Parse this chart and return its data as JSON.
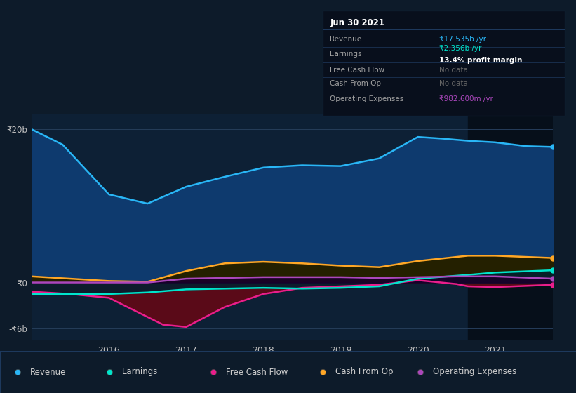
{
  "bg_color": "#0d1b2a",
  "plot_bg_color": "#0d2035",
  "grid_color": "#253d5a",
  "x_min": 2015.0,
  "x_max": 2021.75,
  "y_min": -7.5,
  "y_max": 22,
  "highlight_x_start": 2020.65,
  "highlight_x_end": 2021.75,
  "highlight_color": "#060f1a",
  "zero_line_color": "#c0c0c0",
  "series": {
    "revenue": {
      "color": "#29b6f6",
      "fill_color": "#0e3a6e",
      "label": "Revenue",
      "x": [
        2015.0,
        2015.4,
        2016.0,
        2016.5,
        2017.0,
        2017.5,
        2018.0,
        2018.5,
        2019.0,
        2019.5,
        2020.0,
        2020.3,
        2020.65,
        2021.0,
        2021.4,
        2021.75
      ],
      "y": [
        20.0,
        18.0,
        11.5,
        10.3,
        12.5,
        13.8,
        15.0,
        15.3,
        15.2,
        16.2,
        19.0,
        18.8,
        18.5,
        18.3,
        17.8,
        17.7
      ]
    },
    "earnings": {
      "color": "#00e5cc",
      "fill_color": "#003344",
      "label": "Earnings",
      "x": [
        2015.0,
        2015.5,
        2016.0,
        2016.5,
        2017.0,
        2017.5,
        2018.0,
        2018.5,
        2019.0,
        2019.5,
        2020.0,
        2020.65,
        2021.0,
        2021.5,
        2021.75
      ],
      "y": [
        -1.5,
        -1.5,
        -1.5,
        -1.3,
        -0.9,
        -0.8,
        -0.7,
        -0.8,
        -0.7,
        -0.5,
        0.5,
        1.0,
        1.3,
        1.5,
        1.6
      ]
    },
    "free_cash_flow": {
      "color": "#e91e8c",
      "fill_color": "#6b0a1a",
      "label": "Free Cash Flow",
      "x": [
        2015.0,
        2015.5,
        2016.0,
        2016.4,
        2016.7,
        2017.0,
        2017.5,
        2018.0,
        2018.5,
        2019.0,
        2019.5,
        2020.0,
        2020.5,
        2020.65,
        2021.0,
        2021.5,
        2021.75
      ],
      "y": [
        -1.2,
        -1.5,
        -2.0,
        -4.0,
        -5.5,
        -5.8,
        -3.2,
        -1.5,
        -0.7,
        -0.5,
        -0.3,
        0.3,
        -0.2,
        -0.5,
        -0.6,
        -0.4,
        -0.3
      ]
    },
    "cash_from_op": {
      "color": "#ffa726",
      "fill_color": "#2a1e00",
      "label": "Cash From Op",
      "x": [
        2015.0,
        2015.5,
        2016.0,
        2016.5,
        2017.0,
        2017.5,
        2018.0,
        2018.5,
        2019.0,
        2019.5,
        2020.0,
        2020.65,
        2021.0,
        2021.5,
        2021.75
      ],
      "y": [
        0.8,
        0.5,
        0.2,
        0.1,
        1.5,
        2.5,
        2.7,
        2.5,
        2.2,
        2.0,
        2.8,
        3.5,
        3.5,
        3.3,
        3.2
      ]
    },
    "operating_expenses": {
      "color": "#ab47bc",
      "fill_color": "#1a0028",
      "label": "Operating Expenses",
      "x": [
        2015.0,
        2016.5,
        2016.9,
        2017.0,
        2017.5,
        2018.0,
        2018.5,
        2019.0,
        2019.5,
        2020.0,
        2020.5,
        2020.65,
        2021.0,
        2021.5,
        2021.75
      ],
      "y": [
        0.0,
        0.0,
        0.4,
        0.5,
        0.6,
        0.7,
        0.7,
        0.7,
        0.6,
        0.7,
        0.8,
        0.8,
        0.8,
        0.6,
        0.5
      ]
    }
  },
  "ytick_positions": [
    20,
    0,
    -6
  ],
  "ytick_labels": [
    "₹20b",
    "₹0",
    "-₹6b"
  ],
  "xtick_positions": [
    2016,
    2017,
    2018,
    2019,
    2020,
    2021
  ],
  "xtick_labels": [
    "2016",
    "2017",
    "2018",
    "2019",
    "2020",
    "2021"
  ],
  "tooltip": {
    "date": "Jun 30 2021",
    "bg_color": "#080f1c",
    "border_color": "#1e3a5f",
    "rows": [
      {
        "label": "Revenue",
        "value": "₹17.535b /yr",
        "value_color": "#29b6f6",
        "extra": ""
      },
      {
        "label": "Earnings",
        "value": "₹2.356b /yr",
        "value_color": "#00e5cc",
        "extra": "13.4% profit margin"
      },
      {
        "label": "Free Cash Flow",
        "value": "No data",
        "value_color": "#666666",
        "extra": ""
      },
      {
        "label": "Cash From Op",
        "value": "No data",
        "value_color": "#666666",
        "extra": ""
      },
      {
        "label": "Operating Expenses",
        "value": "₹982.600m /yr",
        "value_color": "#ab47bc",
        "extra": ""
      }
    ]
  },
  "legend": [
    {
      "label": "Revenue",
      "color": "#29b6f6"
    },
    {
      "label": "Earnings",
      "color": "#00e5cc"
    },
    {
      "label": "Free Cash Flow",
      "color": "#e91e8c"
    },
    {
      "label": "Cash From Op",
      "color": "#ffa726"
    },
    {
      "label": "Operating Expenses",
      "color": "#ab47bc"
    }
  ]
}
